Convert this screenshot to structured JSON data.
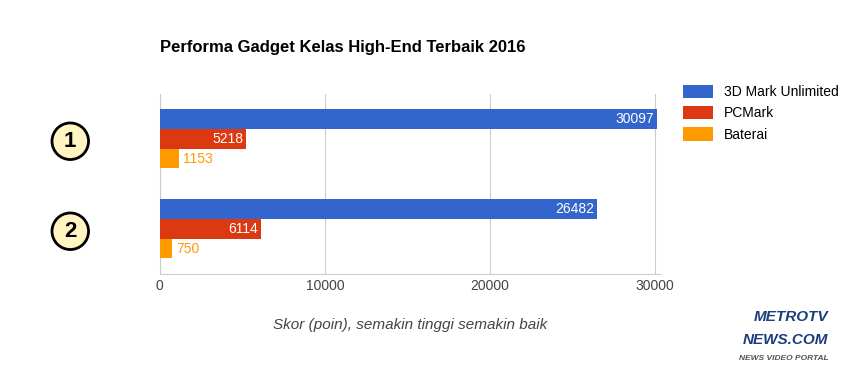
{
  "chart_data": {
    "type": "bar",
    "orientation": "horizontal",
    "title": "Performa Gadget Kelas High-End Terbaik 2016",
    "x_label": "Skor (poin), semakin tinggi semakin baik",
    "categories": [
      "1",
      "2"
    ],
    "series": [
      {
        "name": "3D Mark Unlimited",
        "color": "#3366cc",
        "values": [
          30097,
          26482
        ]
      },
      {
        "name": "PCMark",
        "color": "#dc3912",
        "values": [
          5218,
          6114
        ]
      },
      {
        "name": "Baterai",
        "color": "#ff9900",
        "values": [
          1153,
          750
        ]
      }
    ],
    "xlim": [
      0,
      30300
    ],
    "xticks": [
      0,
      10000,
      20000,
      30000
    ],
    "grid": true,
    "legend": "right",
    "data_labels": true,
    "annotations": [
      "METROTV",
      "NEWS.COM",
      "NEWS VIDEO PORTAL"
    ]
  }
}
